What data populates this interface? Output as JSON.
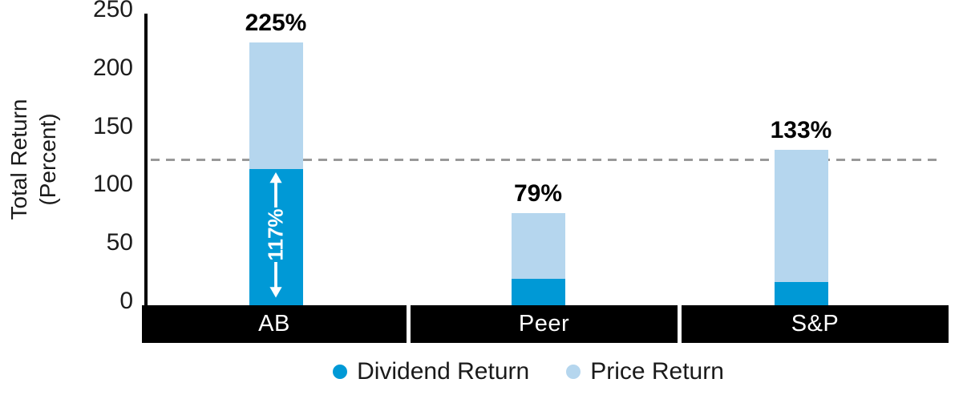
{
  "chart_data": {
    "type": "bar",
    "stacked": true,
    "title": "",
    "categories": [
      "AB",
      "Peer",
      "S&P"
    ],
    "series": [
      {
        "name": "Dividend Return",
        "color": "#0099d6",
        "values": [
          117,
          23,
          20
        ]
      },
      {
        "name": "Price Return",
        "color": "#b5d6ee",
        "values": [
          108,
          56,
          113
        ]
      }
    ],
    "totals": [
      225,
      79,
      133
    ],
    "total_labels": [
      "225%",
      "79%",
      "133%"
    ],
    "ylabel_line1": "Total Return",
    "ylabel_line2": "(Percent)",
    "ylim": [
      0,
      250
    ],
    "yticks": [
      0,
      50,
      100,
      150,
      200,
      250
    ],
    "grid": "single dashed reference line only",
    "reference_line": {
      "value": 125,
      "style": "dashed",
      "color": "#999999"
    },
    "annotation": {
      "category": "AB",
      "series": "Dividend Return",
      "label": "117%"
    },
    "legend_position": "bottom",
    "legend": [
      {
        "label": "Dividend Return",
        "color": "#0099d6"
      },
      {
        "label": "Price Return",
        "color": "#b5d6ee"
      }
    ],
    "colors": {
      "axis": "#000000",
      "x_band_background": "#000000",
      "x_band_text": "#ffffff",
      "annotation_text": "#ffffff",
      "tick_text": "#1c1c1c"
    }
  }
}
